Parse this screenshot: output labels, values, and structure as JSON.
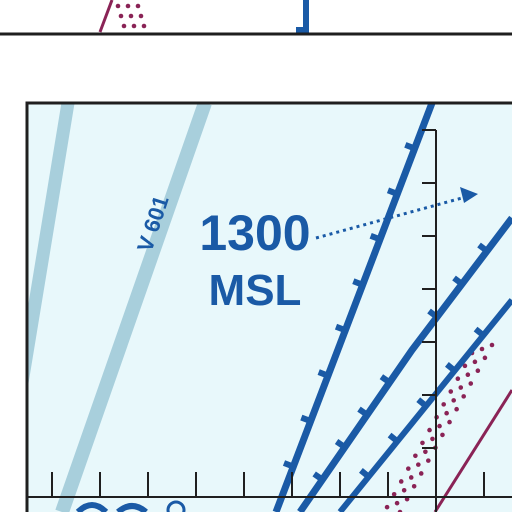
{
  "airway": {
    "label": "V 601"
  },
  "altitude": {
    "value": "1300",
    "unit": "MSL"
  },
  "colors": {
    "panel_background": "#e8f8fb",
    "frame": "#1f1f1f",
    "airway_band": "#a8cfdc",
    "lead_line": "#1a5aa6",
    "boundary_dots": "#8a2356"
  },
  "icons": [
    "arrow-right-icon"
  ]
}
